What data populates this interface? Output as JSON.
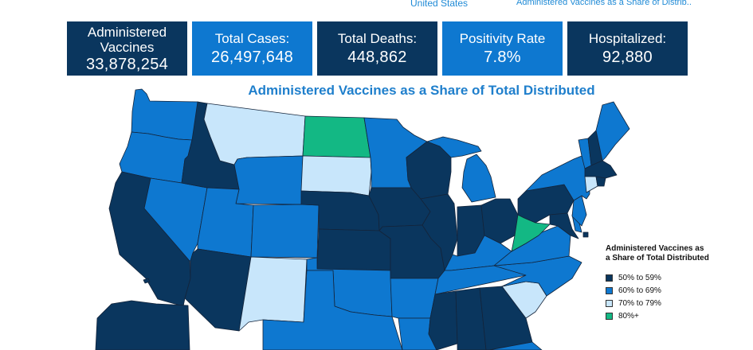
{
  "links": {
    "left": "United States",
    "right": "Administered Vaccines as a Share of Distrib.."
  },
  "stats": {
    "vaccines": {
      "label": "Administered Vaccines",
      "value": "33,878,254"
    },
    "cases": {
      "label": "Total Cases:",
      "value": "26,497,648"
    },
    "deaths": {
      "label": "Total Deaths:",
      "value": "448,862"
    },
    "positivity": {
      "label": "Positivity Rate",
      "value": "7.8%"
    },
    "hospitalized": {
      "label": "Hospitalized:",
      "value": "92,880"
    }
  },
  "map": {
    "title": "Administered Vaccines as a Share of Total Distributed",
    "colors": {
      "bin_50_59": "#0a365e",
      "bin_60_69": "#0e78d0",
      "bin_70_79": "#c8e6fb",
      "bin_80_plus": "#13b884"
    },
    "legend": {
      "title": "Administered Vaccines as a Share of Total Distributed",
      "items": [
        {
          "label": "50% to 59%",
          "color": "#0a365e"
        },
        {
          "label": "60% to 69%",
          "color": "#0e78d0"
        },
        {
          "label": "70% to 79%",
          "color": "#c8e6fb"
        },
        {
          "label": "80%+",
          "color": "#13b884"
        }
      ]
    }
  }
}
